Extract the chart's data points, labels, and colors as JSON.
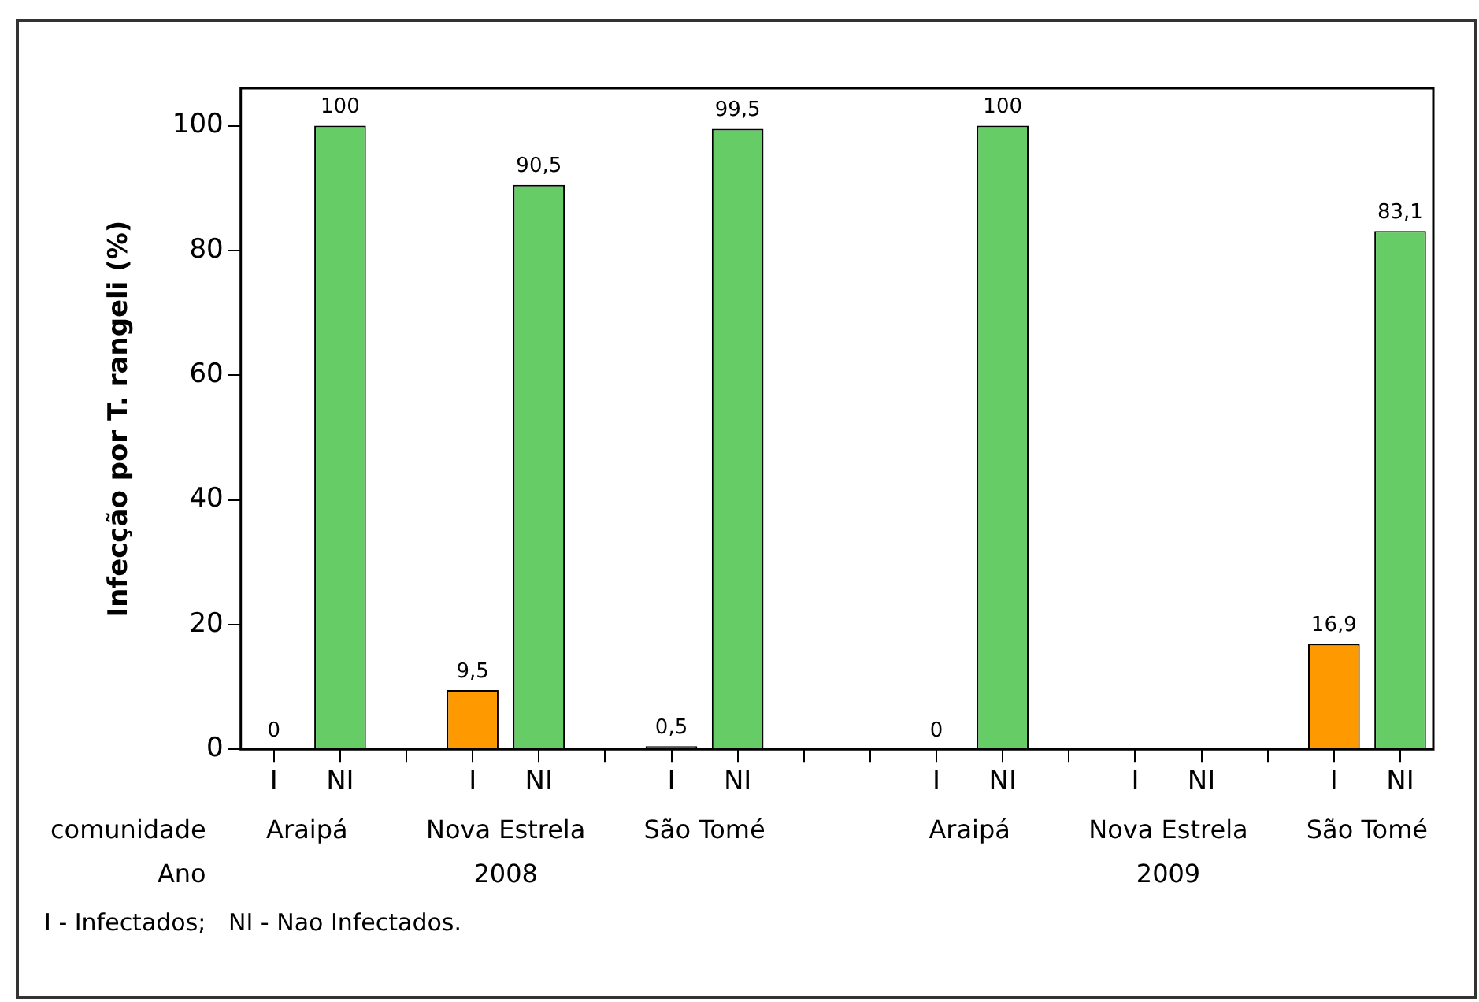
{
  "chart_data": {
    "type": "bar",
    "ylabel": "Infecção por T. rangeli (%)",
    "categories": [
      "I",
      "NI",
      null,
      "I",
      "NI",
      null,
      "I",
      "NI",
      null,
      null,
      "I",
      "NI",
      null,
      "I",
      "NI",
      null,
      "I",
      "NI"
    ],
    "values": [
      0,
      100,
      null,
      9.5,
      90.5,
      null,
      0.5,
      99.5,
      null,
      null,
      0,
      100,
      null,
      null,
      null,
      null,
      16.9,
      83.1
    ],
    "colors": [
      "#ff9900",
      "#66cc66",
      null,
      "#ff9900",
      "#66cc66",
      null,
      "#ff9900",
      "#66cc66",
      null,
      null,
      "#ff9900",
      "#66cc66",
      null,
      "#ff9900",
      "#66cc66",
      null,
      "#ff9900",
      "#66cc66"
    ],
    "value_labels": [
      "0",
      "100",
      null,
      "9,5",
      "90,5",
      null,
      "0,5",
      "99,5",
      null,
      null,
      "0",
      "100",
      null,
      null,
      null,
      null,
      "16,9",
      "83,1"
    ],
    "ylim": [
      0,
      106
    ],
    "yticks": [
      0,
      20,
      40,
      60,
      80,
      100
    ],
    "grid": false,
    "legend": false,
    "annotations": [
      "comunidade",
      "Araipá",
      "Nova Estrela",
      "São Tomé",
      "Araipá",
      "Nova Estrela",
      "São Tomé",
      "Ano",
      "2008",
      "2009",
      "I - Infectados;   NI - Nao Infectados."
    ]
  }
}
